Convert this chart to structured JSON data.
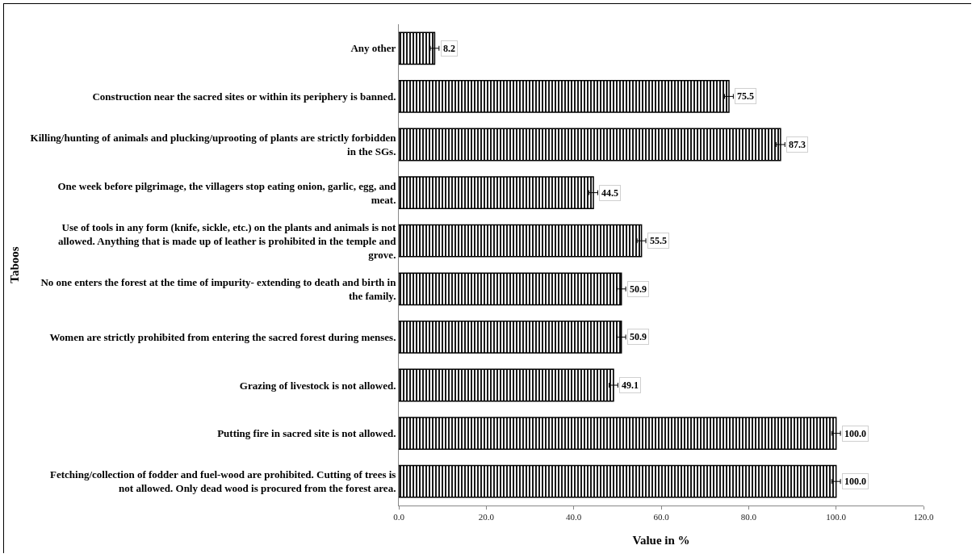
{
  "chart_data": {
    "type": "bar",
    "orientation": "horizontal",
    "xlabel": "Value in %",
    "ylabel": "Taboos",
    "categories": [
      "Any other",
      "Construction near the sacred sites or within its periphery is banned.",
      "Killing/hunting of animals and plucking/uprooting of plants are strictly forbidden in the SGs.",
      "One week before pilgrimage, the villagers stop eating onion, garlic, egg, and meat.",
      "Use of tools in any form (knife, sickle, etc.) on the plants and animals is not allowed. Anything that is made up of leather is prohibited in the temple and grove.",
      "No one enters the forest at the time of impurity- extending to death and birth in the family.",
      "Women are strictly prohibited from entering the sacred forest during menses.",
      "Grazing of livestock is not allowed.",
      "Putting fire in sacred site is not allowed.",
      "Fetching/collection of fodder and fuel-wood are prohibited. Cutting of trees is not allowed. Only dead wood is procured from the forest area."
    ],
    "values": [
      8.2,
      75.5,
      87.3,
      44.5,
      55.5,
      50.9,
      50.9,
      49.1,
      100.0,
      100.0
    ],
    "value_labels": [
      "8.2",
      "75.5",
      "87.3",
      "44.5",
      "55.5",
      "50.9",
      "50.9",
      "49.1",
      "100.0",
      "100.0"
    ],
    "errors": [
      1,
      1,
      1,
      1,
      1,
      1,
      1,
      1,
      1,
      1
    ],
    "color": "#000000",
    "xlim": [
      0,
      120
    ],
    "xticks": [
      {
        "value": 0,
        "label": "0.0"
      },
      {
        "value": 20,
        "label": "20.0"
      },
      {
        "value": 40,
        "label": "40.0"
      },
      {
        "value": 60,
        "label": "60.0"
      },
      {
        "value": 80,
        "label": "80.0"
      },
      {
        "value": 100,
        "label": "100.0"
      },
      {
        "value": 120,
        "label": "120.0"
      }
    ],
    "grid": false
  }
}
